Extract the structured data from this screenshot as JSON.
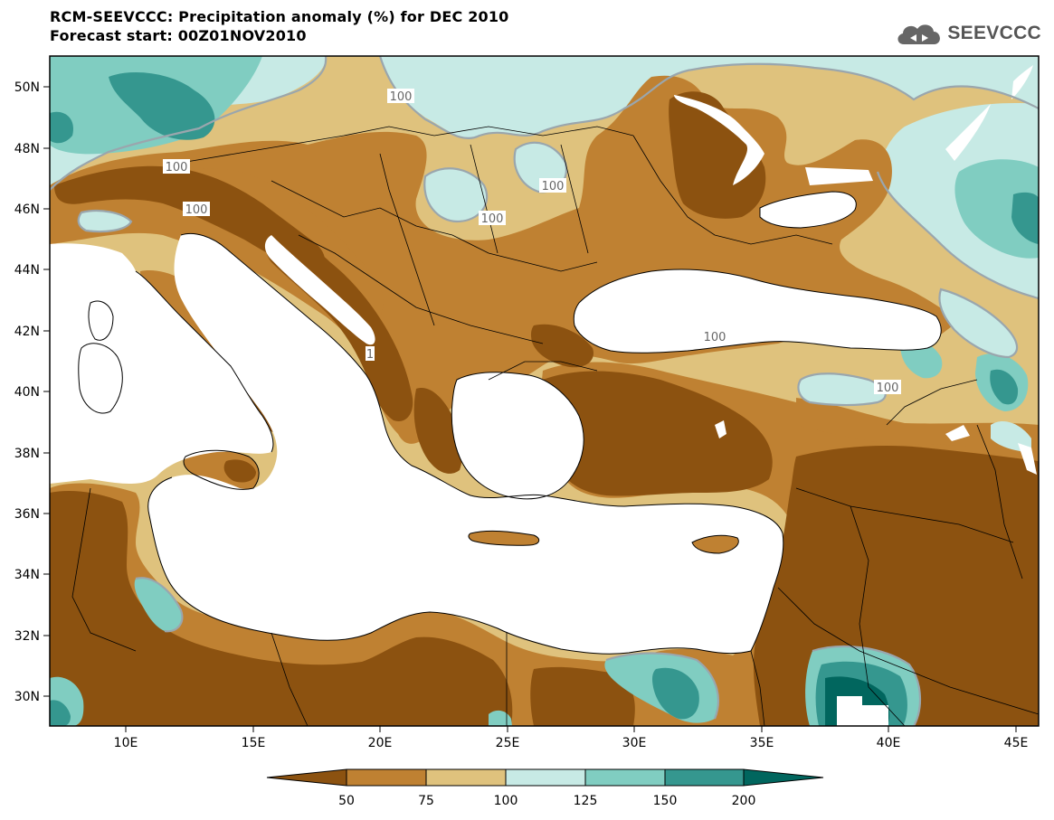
{
  "header": {
    "title": "RCM-SEEVCCC: Precipitation anomaly (%) for DEC 2010",
    "subtitle": "Forecast start: 00Z01NOV2010",
    "logo_text": "SEEVCCC",
    "logo_icon": "cloud-icon"
  },
  "map": {
    "lon_ticks": [
      "10E",
      "15E",
      "20E",
      "25E",
      "30E",
      "35E",
      "40E",
      "45E"
    ],
    "lat_ticks": [
      "50N",
      "48N",
      "46N",
      "44N",
      "42N",
      "40N",
      "38N",
      "36N",
      "34N",
      "32N",
      "30N"
    ],
    "contour_labels": [
      "100",
      "100",
      "100",
      "100",
      "100",
      "100",
      "100",
      "100",
      "1"
    ],
    "colors": {
      "lt50": "#8c5210",
      "c50_75": "#bf8132",
      "c75_100": "#dfc27d",
      "c100_125": "#c7eae5",
      "c125_150": "#80cdc1",
      "c150_200": "#35978f",
      "gt200": "#01665e",
      "water": "#ffffff",
      "contour": "#9aa6ad"
    }
  },
  "colorbar": {
    "labels": [
      "50",
      "75",
      "100",
      "125",
      "150",
      "200"
    ],
    "colors": [
      "#8c5210",
      "#bf8132",
      "#dfc27d",
      "#c7eae5",
      "#80cdc1",
      "#35978f",
      "#01665e"
    ]
  }
}
